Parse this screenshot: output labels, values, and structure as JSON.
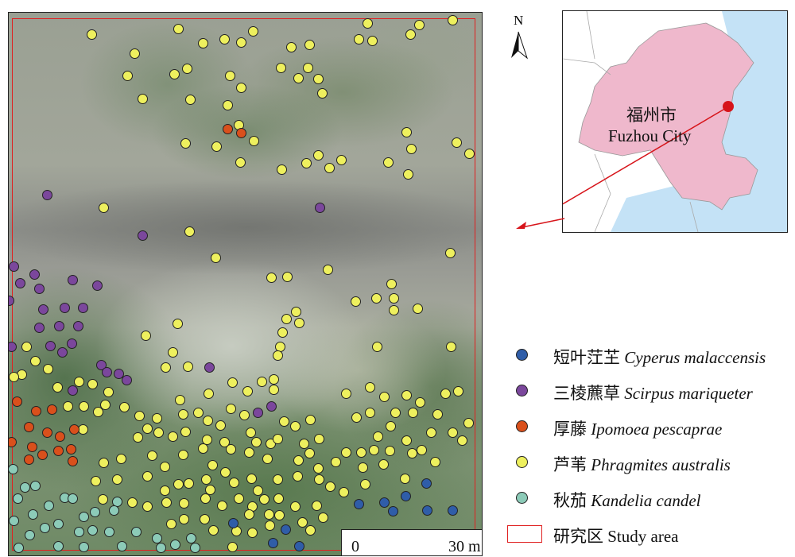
{
  "map": {
    "scale_bar": {
      "start_label": "0",
      "end_label": "30 m"
    },
    "north_arrow": {
      "label": "N",
      "icon": "north-arrow-icon"
    },
    "study_area_color": "#e02020"
  },
  "inset": {
    "city_cn": "福州市",
    "city_en": "Fuzhou City",
    "colors": {
      "city": "#efb8cc",
      "sea": "#c4e2f6",
      "marker": "#d7141a"
    }
  },
  "legend": {
    "items": [
      {
        "cn": "短叶茳芏",
        "latin": "Cyperus malaccensis",
        "color": "#2f5da8"
      },
      {
        "cn": "三棱藨草",
        "latin": "Scirpus mariqueter",
        "color": "#7b479c"
      },
      {
        "cn": "厚藤",
        "latin": "Ipomoea pescaprae",
        "color": "#d9501c"
      },
      {
        "cn": "芦苇",
        "latin": "Phragmites australis",
        "color": "#eef05e"
      },
      {
        "cn": "秋茄",
        "latin": "Kandelia candel",
        "color": "#8ccbb8"
      }
    ],
    "study_area": {
      "cn": "研究区",
      "en": "Study area"
    }
  }
}
